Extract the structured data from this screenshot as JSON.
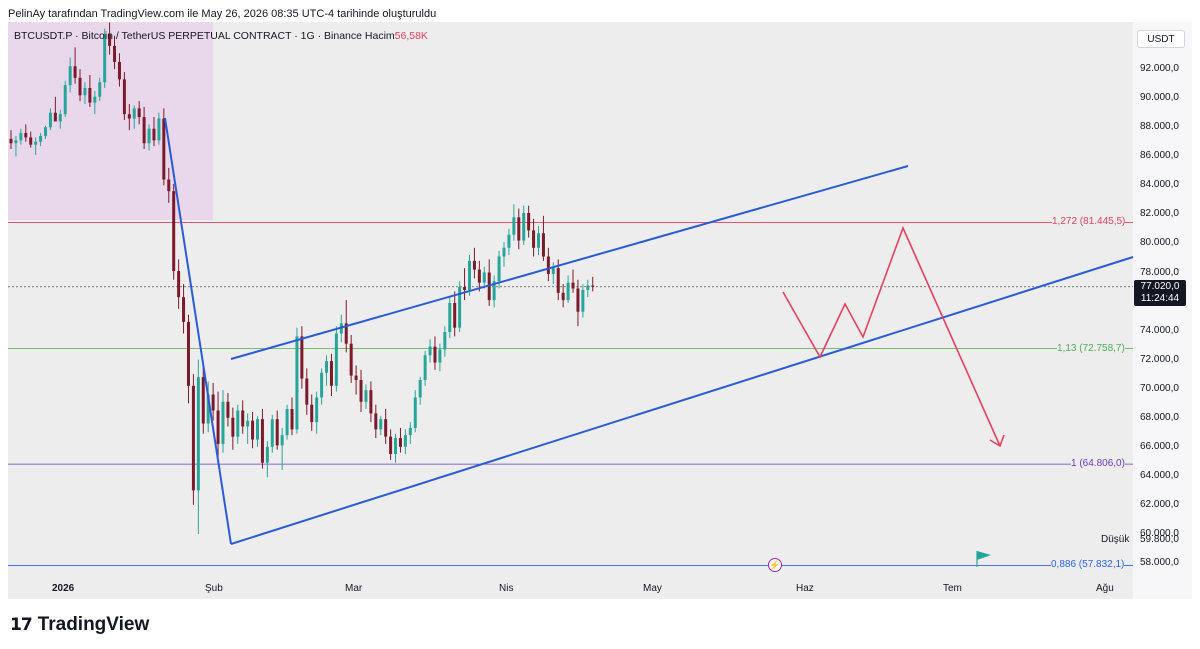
{
  "caption": "PelinAy tarafından TradingView.com ile May 26, 2026 08:35 UTC-4 tarihinde oluşturuldu",
  "header": {
    "symbol": "BTCUSDT.P · Bitcoin / TetherUS PERPETUAL CONTRACT · 1G · Binance",
    "volume_label": "Hacim",
    "volume_value": "56,58K"
  },
  "brand": "TradingView",
  "currency": "USDT",
  "low_label": "Düşük",
  "low_value": "59.800,0",
  "colors": {
    "up": "#26a69a",
    "down": "#7b1a2a",
    "channel": "#2a5bd7",
    "projection": "#e5405f",
    "highlight": "#e8d4ea"
  },
  "chart_data": {
    "type": "candlestick",
    "y_axis": {
      "min": 57000,
      "max": 95000,
      "ticks": [
        "92.000,0",
        "90.000,0",
        "88.000,0",
        "86.000,0",
        "84.000,0",
        "82.000,0",
        "80.000,0",
        "78.000,0",
        "76.000,0",
        "74.000,0",
        "72.000,0",
        "70.000,0",
        "68.000,0",
        "66.000,0",
        "64.000,0",
        "62.000,0",
        "60.000,0",
        "58.000,0"
      ],
      "tick_values": [
        92000,
        90000,
        88000,
        86000,
        84000,
        82000,
        80000,
        78000,
        76000,
        74000,
        72000,
        70000,
        68000,
        66000,
        64000,
        62000,
        60000,
        58000
      ]
    },
    "x_axis": {
      "labels": [
        "2026",
        "Şub",
        "Mar",
        "Nis",
        "May",
        "Haz",
        "Tem",
        "Ağu"
      ]
    },
    "current_price": "77.020,0",
    "countdown": "11:24:44",
    "current_price_value": 77020,
    "fib_levels": [
      {
        "label": "1,272 (81.445,5)",
        "value": 81445.5,
        "color": "#e5405f"
      },
      {
        "label": "1,13 (72.758,7)",
        "value": 72758.7,
        "color": "#4caf50"
      },
      {
        "label": "1 (64.806,0)",
        "value": 64806,
        "color": "#673ab7"
      },
      {
        "label": "0,886 (57.832,1)",
        "value": 57832.1,
        "color": "#2962ff"
      }
    ],
    "ohlc": [
      [
        87200,
        87800,
        86500,
        86900
      ],
      [
        86900,
        87400,
        86000,
        87100
      ],
      [
        87100,
        87900,
        86800,
        87600
      ],
      [
        87600,
        88200,
        87000,
        87300
      ],
      [
        87300,
        87700,
        86600,
        86800
      ],
      [
        86800,
        87300,
        86100,
        87000
      ],
      [
        87000,
        87600,
        86700,
        87400
      ],
      [
        87400,
        88100,
        87200,
        88000
      ],
      [
        88000,
        89300,
        87800,
        89000
      ],
      [
        89000,
        90100,
        88600,
        88400
      ],
      [
        88400,
        89200,
        87900,
        88900
      ],
      [
        88900,
        91200,
        88700,
        90900
      ],
      [
        90900,
        92800,
        90400,
        92200
      ],
      [
        92200,
        93500,
        91000,
        91400
      ],
      [
        91400,
        92000,
        89800,
        90200
      ],
      [
        90200,
        91100,
        89600,
        90700
      ],
      [
        90700,
        91600,
        89400,
        89700
      ],
      [
        89700,
        90500,
        88900,
        90100
      ],
      [
        90100,
        91400,
        89800,
        91100
      ],
      [
        91100,
        94800,
        90700,
        94400
      ],
      [
        94400,
        95200,
        93000,
        93600
      ],
      [
        93600,
        94300,
        92000,
        92500
      ],
      [
        92500,
        93100,
        90800,
        91300
      ],
      [
        91300,
        91800,
        88500,
        88900
      ],
      [
        88900,
        89600,
        87800,
        88600
      ],
      [
        88600,
        89500,
        87900,
        89300
      ],
      [
        89300,
        89800,
        88200,
        88700
      ],
      [
        88700,
        89400,
        86500,
        86900
      ],
      [
        86900,
        88200,
        86400,
        87900
      ],
      [
        87900,
        88700,
        86700,
        87100
      ],
      [
        87100,
        89000,
        86800,
        88600
      ],
      [
        88600,
        89300,
        84000,
        84400
      ],
      [
        84400,
        85200,
        82800,
        83600
      ],
      [
        83600,
        84100,
        77500,
        78100
      ],
      [
        78100,
        78900,
        75500,
        76300
      ],
      [
        76300,
        77200,
        73800,
        74600
      ],
      [
        74600,
        75100,
        69000,
        70200
      ],
      [
        70200,
        71000,
        62000,
        63000
      ],
      [
        63000,
        72000,
        60000,
        70800
      ],
      [
        70800,
        71500,
        66900,
        67600
      ],
      [
        67600,
        70500,
        67000,
        69600
      ],
      [
        69600,
        70400,
        67800,
        68500
      ],
      [
        68500,
        69800,
        65300,
        66200
      ],
      [
        66200,
        69900,
        65600,
        69100
      ],
      [
        69100,
        69700,
        67400,
        68000
      ],
      [
        68000,
        68700,
        65800,
        66700
      ],
      [
        66700,
        68900,
        66200,
        68500
      ],
      [
        68500,
        69200,
        66900,
        67400
      ],
      [
        67400,
        68300,
        66200,
        67800
      ],
      [
        67800,
        68400,
        65900,
        66500
      ],
      [
        66500,
        68100,
        66000,
        67900
      ],
      [
        67900,
        68600,
        64500,
        64900
      ],
      [
        64900,
        66400,
        63900,
        66000
      ],
      [
        66000,
        68200,
        65600,
        67900
      ],
      [
        67900,
        68500,
        65800,
        66100
      ],
      [
        66100,
        67300,
        64400,
        66800
      ],
      [
        66800,
        68900,
        66500,
        68600
      ],
      [
        68600,
        69400,
        66800,
        67200
      ],
      [
        67200,
        74200,
        66900,
        73600
      ],
      [
        73600,
        74300,
        70000,
        70700
      ],
      [
        70700,
        71400,
        68200,
        68900
      ],
      [
        68900,
        69600,
        67100,
        67700
      ],
      [
        67700,
        69800,
        66900,
        69400
      ],
      [
        69400,
        71400,
        68900,
        71100
      ],
      [
        71100,
        72300,
        70200,
        71900
      ],
      [
        71900,
        72400,
        69500,
        70200
      ],
      [
        70200,
        74300,
        69800,
        73800
      ],
      [
        73800,
        75100,
        73200,
        74500
      ],
      [
        74500,
        76100,
        72500,
        73100
      ],
      [
        73100,
        73700,
        70400,
        70900
      ],
      [
        70900,
        71600,
        69600,
        70600
      ],
      [
        70600,
        71300,
        68400,
        69100
      ],
      [
        69100,
        70300,
        68600,
        69900
      ],
      [
        69900,
        70500,
        67700,
        68300
      ],
      [
        68300,
        68900,
        66600,
        67200
      ],
      [
        67200,
        68100,
        66800,
        67900
      ],
      [
        67900,
        68600,
        66200,
        66700
      ],
      [
        66700,
        67200,
        65100,
        65500
      ],
      [
        65500,
        66900,
        64900,
        66600
      ],
      [
        66600,
        67300,
        65600,
        66000
      ],
      [
        66000,
        67200,
        65500,
        66800
      ],
      [
        66800,
        67700,
        66200,
        67300
      ],
      [
        67300,
        69900,
        67000,
        69400
      ],
      [
        69400,
        70800,
        68900,
        70600
      ],
      [
        70600,
        72600,
        70200,
        72300
      ],
      [
        72300,
        73400,
        71800,
        72900
      ],
      [
        72900,
        73600,
        71300,
        71800
      ],
      [
        71800,
        73100,
        71200,
        72700
      ],
      [
        72700,
        74300,
        72200,
        73900
      ],
      [
        73900,
        76300,
        73500,
        75900
      ],
      [
        75900,
        76700,
        73600,
        74200
      ],
      [
        74200,
        77400,
        73900,
        77000
      ],
      [
        77000,
        78300,
        76100,
        76800
      ],
      [
        76800,
        79200,
        76400,
        78800
      ],
      [
        78800,
        79700,
        77600,
        78200
      ],
      [
        78200,
        78800,
        76700,
        77300
      ],
      [
        77300,
        78400,
        76900,
        78000
      ],
      [
        78000,
        78900,
        75700,
        76100
      ],
      [
        76100,
        77800,
        75600,
        77400
      ],
      [
        77400,
        79500,
        76900,
        79100
      ],
      [
        79100,
        80100,
        78400,
        79700
      ],
      [
        79700,
        81000,
        79200,
        80600
      ],
      [
        80600,
        82700,
        80200,
        81800
      ],
      [
        81800,
        82400,
        79600,
        80200
      ],
      [
        80200,
        82600,
        79900,
        82100
      ],
      [
        82100,
        82600,
        80400,
        80900
      ],
      [
        80900,
        81700,
        79100,
        79700
      ],
      [
        79700,
        81200,
        79200,
        80700
      ],
      [
        80700,
        81900,
        78800,
        79100
      ],
      [
        79100,
        79700,
        77400,
        77900
      ],
      [
        77900,
        78700,
        77200,
        78300
      ],
      [
        78300,
        78900,
        76100,
        76600
      ],
      [
        76600,
        77200,
        75600,
        76100
      ],
      [
        76100,
        77800,
        75900,
        77300
      ],
      [
        77300,
        78200,
        76600,
        76900
      ],
      [
        76900,
        77500,
        74300,
        75300
      ],
      [
        75300,
        77200,
        74900,
        76800
      ],
      [
        76800,
        77500,
        76300,
        77100
      ],
      [
        77100,
        77700,
        76700,
        77020
      ]
    ]
  }
}
